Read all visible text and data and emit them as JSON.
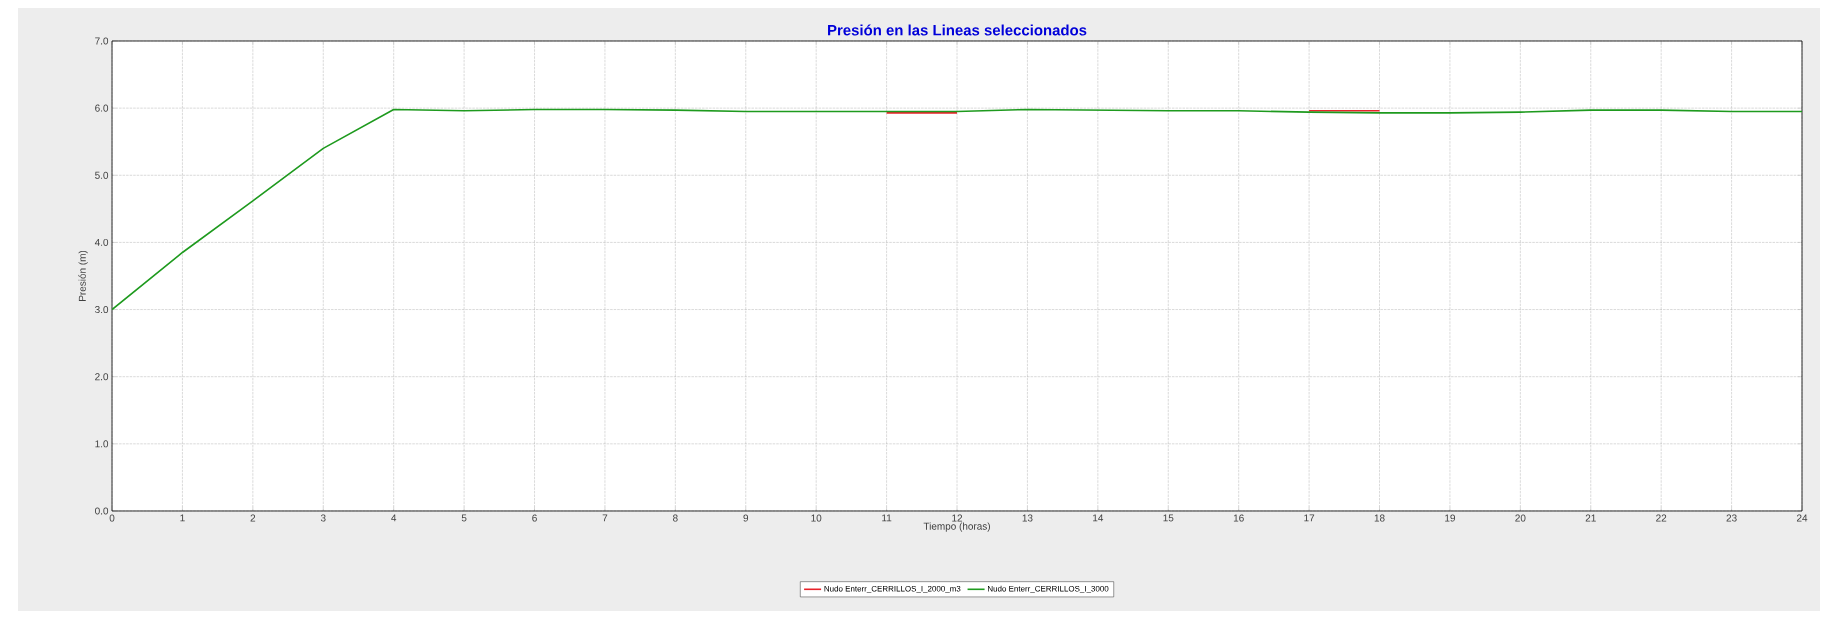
{
  "chart_data": {
    "type": "line",
    "title": "Presión en las Lineas seleccionados",
    "xlabel": "Tiempo (horas)",
    "ylabel": "Presión (m)",
    "x": [
      0,
      1,
      2,
      3,
      4,
      5,
      6,
      7,
      8,
      9,
      10,
      11,
      12,
      13,
      14,
      15,
      16,
      17,
      18,
      19,
      20,
      21,
      22,
      23,
      24
    ],
    "series": [
      {
        "name": "Nudo Enterr_CERRILLOS_I_2000_m3",
        "color": "#e8222a",
        "values": [
          null,
          null,
          null,
          null,
          null,
          null,
          null,
          null,
          null,
          null,
          null,
          5.93,
          5.93,
          null,
          null,
          null,
          null,
          5.96,
          5.96,
          null,
          null,
          null,
          null,
          null,
          null
        ]
      },
      {
        "name": "Nudo Enterr_CERRILLOS_I_3000",
        "color": "#1e9a1e",
        "values": [
          3.0,
          3.85,
          4.62,
          5.4,
          5.98,
          5.96,
          5.98,
          5.98,
          5.97,
          5.95,
          5.95,
          5.95,
          5.95,
          5.98,
          5.97,
          5.96,
          5.96,
          5.94,
          5.93,
          5.93,
          5.94,
          5.97,
          5.97,
          5.95,
          5.95
        ]
      }
    ],
    "xlim": [
      0,
      24
    ],
    "ylim": [
      0,
      7
    ],
    "xticks": [
      0,
      1,
      2,
      3,
      4,
      5,
      6,
      7,
      8,
      9,
      10,
      11,
      12,
      13,
      14,
      15,
      16,
      17,
      18,
      19,
      20,
      21,
      22,
      23,
      24
    ],
    "yticks": [
      {
        "value": 0,
        "label": "0.0"
      },
      {
        "value": 1,
        "label": "1.0"
      },
      {
        "value": 2,
        "label": "2.0"
      },
      {
        "value": 3,
        "label": "3.0"
      },
      {
        "value": 4,
        "label": "4.0"
      },
      {
        "value": 5,
        "label": "5.0"
      },
      {
        "value": 6,
        "label": "6.0"
      },
      {
        "value": 7,
        "label": "7.0"
      }
    ],
    "grid": true,
    "legend": "bottom",
    "marker": "none",
    "line_style": "solid"
  }
}
